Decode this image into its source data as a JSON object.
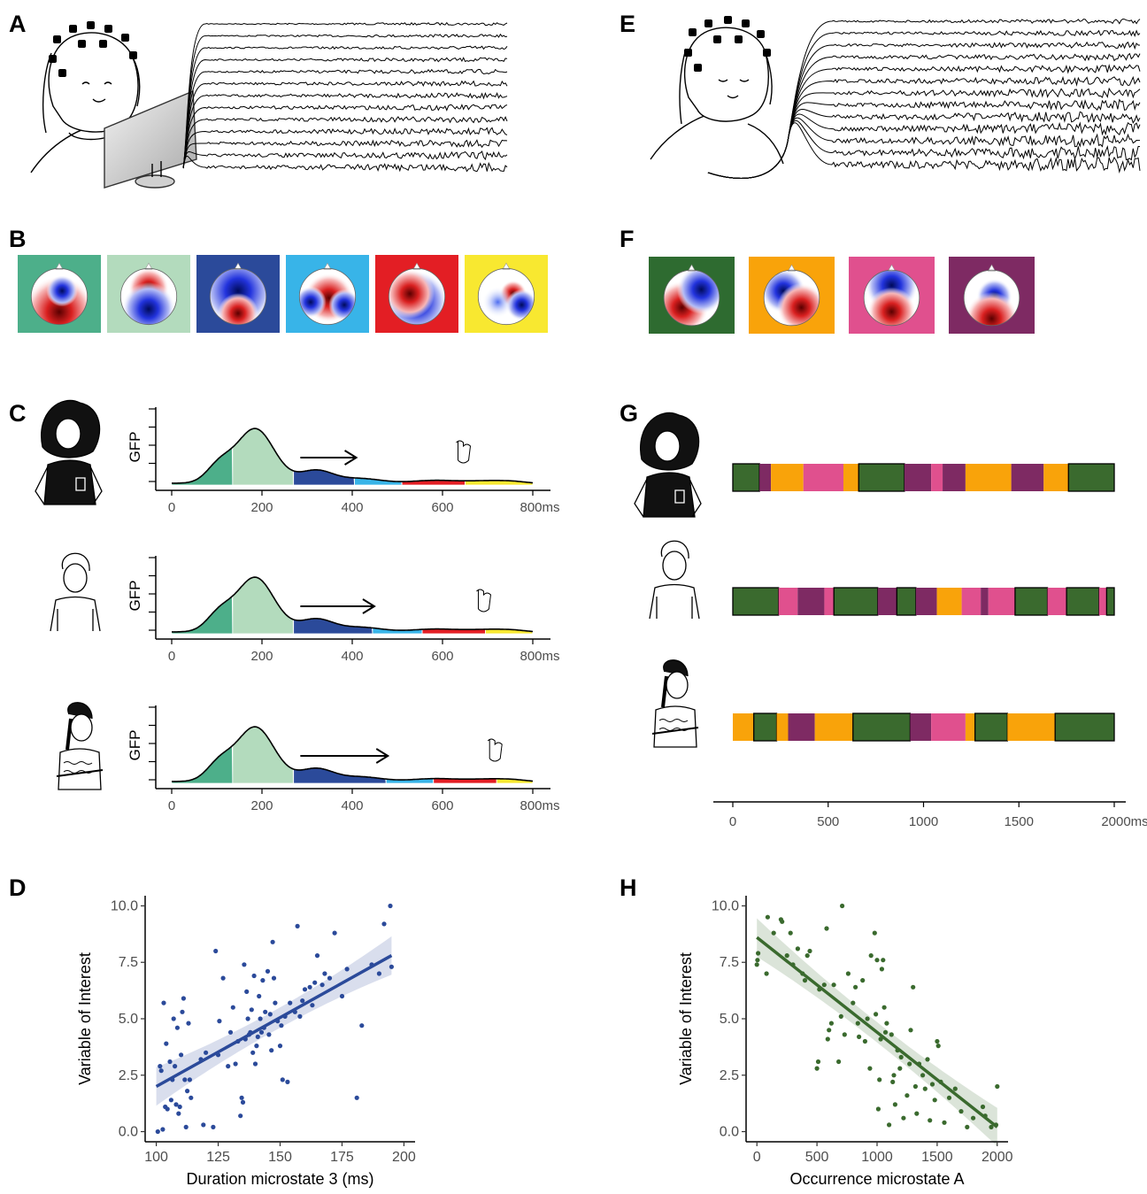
{
  "panels": {
    "A": "A",
    "B": "B",
    "C": "C",
    "D": "D",
    "E": "E",
    "F": "F",
    "G": "G",
    "H": "H"
  },
  "colors": {
    "erp_states": [
      "#4daf8a",
      "#b3dbbd",
      "#2b4a9a",
      "#38b4e8",
      "#e31e24",
      "#f8e830"
    ],
    "rest_states": [
      "#3a6a2e",
      "#f9a30a",
      "#e0508e",
      "#7e2a63"
    ],
    "rest_state_frames": [
      "#2e6b30",
      "#f9a30a",
      "#e0508e",
      "#7e2a63"
    ],
    "scatter_D": "#2b4a9a",
    "scatter_H": "#3a6a2e"
  },
  "icons": {
    "A": "eeg-cap-person-at-monitor-icon",
    "E": "eeg-cap-person-eyes-closed-icon",
    "participant_1": "curly-hair-person-icon",
    "participant_2": "short-hair-person-icon",
    "participant_3": "braided-hair-person-icon",
    "hand": "pointing-hand-icon",
    "topomap": "scalp-topography-icon"
  },
  "chart_data": [
    {
      "panel": "C",
      "type": "area",
      "ylabel": "GFP",
      "xlabel": "",
      "x_ticks": [
        "0",
        "200",
        "400",
        "600",
        "800ms"
      ],
      "xlim": [
        -25,
        805
      ],
      "participants": [
        {
          "segment_bounds_ms": [
            0,
            135,
            270,
            405,
            510,
            650,
            800
          ],
          "response_ms": 650
        },
        {
          "segment_bounds_ms": [
            0,
            135,
            270,
            445,
            555,
            695,
            800
          ],
          "response_ms": 695
        },
        {
          "segment_bounds_ms": [
            0,
            135,
            270,
            475,
            580,
            720,
            800
          ],
          "response_ms": 720
        }
      ]
    },
    {
      "panel": "G",
      "type": "bar",
      "x_ticks": [
        "0",
        "500",
        "1000",
        "1500",
        "2000ms"
      ],
      "xlim": [
        0,
        2000
      ],
      "sequences": [
        [
          {
            "state": "A",
            "start": 0,
            "end": 140
          },
          {
            "state": "D",
            "start": 140,
            "end": 200
          },
          {
            "state": "B",
            "start": 200,
            "end": 370
          },
          {
            "state": "C",
            "start": 370,
            "end": 580
          },
          {
            "state": "B",
            "start": 580,
            "end": 660
          },
          {
            "state": "A",
            "start": 660,
            "end": 900
          },
          {
            "state": "D",
            "start": 900,
            "end": 1040
          },
          {
            "state": "C",
            "start": 1040,
            "end": 1100
          },
          {
            "state": "D",
            "start": 1100,
            "end": 1220
          },
          {
            "state": "B",
            "start": 1220,
            "end": 1460
          },
          {
            "state": "D",
            "start": 1460,
            "end": 1630
          },
          {
            "state": "B",
            "start": 1630,
            "end": 1760
          },
          {
            "state": "A",
            "start": 1760,
            "end": 2000
          }
        ],
        [
          {
            "state": "A",
            "start": 0,
            "end": 240
          },
          {
            "state": "C",
            "start": 240,
            "end": 340
          },
          {
            "state": "D",
            "start": 340,
            "end": 480
          },
          {
            "state": "C",
            "start": 480,
            "end": 530
          },
          {
            "state": "A",
            "start": 530,
            "end": 760
          },
          {
            "state": "D",
            "start": 760,
            "end": 860
          },
          {
            "state": "A",
            "start": 860,
            "end": 960
          },
          {
            "state": "D",
            "start": 960,
            "end": 1070
          },
          {
            "state": "B",
            "start": 1070,
            "end": 1200
          },
          {
            "state": "C",
            "start": 1200,
            "end": 1300
          },
          {
            "state": "D",
            "start": 1300,
            "end": 1340
          },
          {
            "state": "C",
            "start": 1340,
            "end": 1480
          },
          {
            "state": "A",
            "start": 1480,
            "end": 1650
          },
          {
            "state": "C",
            "start": 1650,
            "end": 1750
          },
          {
            "state": "A",
            "start": 1750,
            "end": 1920
          },
          {
            "state": "C",
            "start": 1920,
            "end": 1960
          },
          {
            "state": "A",
            "start": 1960,
            "end": 2000
          }
        ],
        [
          {
            "state": "B",
            "start": 0,
            "end": 110
          },
          {
            "state": "A",
            "start": 110,
            "end": 230
          },
          {
            "state": "B",
            "start": 230,
            "end": 290
          },
          {
            "state": "D",
            "start": 290,
            "end": 430
          },
          {
            "state": "B",
            "start": 430,
            "end": 630
          },
          {
            "state": "A",
            "start": 630,
            "end": 930
          },
          {
            "state": "D",
            "start": 930,
            "end": 1040
          },
          {
            "state": "C",
            "start": 1040,
            "end": 1220
          },
          {
            "state": "B",
            "start": 1220,
            "end": 1270
          },
          {
            "state": "A",
            "start": 1270,
            "end": 1440
          },
          {
            "state": "B",
            "start": 1440,
            "end": 1690
          },
          {
            "state": "A",
            "start": 1690,
            "end": 2000
          }
        ]
      ]
    },
    {
      "panel": "D",
      "type": "scatter",
      "xlabel": "Duration microstate 3 (ms)",
      "ylabel": "Variable of Interest",
      "xlim": [
        100,
        200
      ],
      "ylim": [
        0,
        10
      ],
      "x_ticks": [
        "100",
        "125",
        "150",
        "175",
        "200"
      ],
      "y_ticks": [
        "0.0",
        "2.5",
        "5.0",
        "7.5",
        "10.0"
      ],
      "regression": {
        "x": [
          100,
          195
        ],
        "y": [
          2.0,
          7.8
        ]
      },
      "points": [
        [
          100.6,
          0.0
        ],
        [
          101.5,
          2.9
        ],
        [
          102.0,
          2.7
        ],
        [
          102.6,
          0.1
        ],
        [
          103.0,
          5.7
        ],
        [
          103.6,
          1.1
        ],
        [
          104.0,
          3.9
        ],
        [
          104.5,
          1.0
        ],
        [
          105.5,
          3.1
        ],
        [
          106.0,
          1.4
        ],
        [
          106.5,
          2.3
        ],
        [
          107.0,
          5.0
        ],
        [
          107.5,
          2.9
        ],
        [
          108.0,
          1.2
        ],
        [
          108.5,
          4.6
        ],
        [
          109.0,
          0.8
        ],
        [
          109.5,
          1.1
        ],
        [
          110.0,
          3.4
        ],
        [
          110.5,
          5.3
        ],
        [
          111.0,
          5.9
        ],
        [
          111.5,
          2.3
        ],
        [
          112.0,
          0.2
        ],
        [
          112.5,
          1.8
        ],
        [
          113.0,
          4.8
        ],
        [
          113.5,
          2.3
        ],
        [
          114.0,
          1.5
        ],
        [
          118.0,
          3.2
        ],
        [
          119.0,
          0.3
        ],
        [
          120.0,
          3.5
        ],
        [
          123.0,
          0.2
        ],
        [
          124.0,
          8.0
        ],
        [
          125.0,
          3.4
        ],
        [
          125.5,
          4.9
        ],
        [
          127.0,
          6.8
        ],
        [
          129.0,
          2.9
        ],
        [
          130.0,
          4.4
        ],
        [
          131.0,
          5.5
        ],
        [
          132.0,
          3.0
        ],
        [
          133.0,
          4.0
        ],
        [
          134.0,
          0.7
        ],
        [
          134.5,
          1.5
        ],
        [
          135.0,
          1.3
        ],
        [
          135.5,
          7.4
        ],
        [
          136.0,
          4.1
        ],
        [
          136.5,
          6.2
        ],
        [
          137.0,
          5.0
        ],
        [
          137.5,
          4.3
        ],
        [
          138.0,
          4.4
        ],
        [
          138.5,
          5.4
        ],
        [
          139.0,
          3.5
        ],
        [
          139.5,
          6.9
        ],
        [
          140.0,
          3.0
        ],
        [
          140.5,
          3.8
        ],
        [
          141.0,
          4.2
        ],
        [
          141.5,
          6.0
        ],
        [
          142.0,
          5.0
        ],
        [
          142.5,
          4.4
        ],
        [
          143.0,
          6.7
        ],
        [
          143.5,
          4.6
        ],
        [
          144.0,
          5.3
        ],
        [
          145.0,
          7.1
        ],
        [
          145.5,
          4.3
        ],
        [
          146.0,
          5.2
        ],
        [
          146.5,
          3.6
        ],
        [
          147.0,
          8.4
        ],
        [
          147.5,
          6.8
        ],
        [
          148.0,
          5.7
        ],
        [
          149.0,
          4.9
        ],
        [
          150.0,
          3.8
        ],
        [
          150.5,
          4.7
        ],
        [
          151.0,
          2.3
        ],
        [
          152.0,
          5.1
        ],
        [
          153.0,
          2.2
        ],
        [
          154.0,
          5.7
        ],
        [
          156.0,
          5.3
        ],
        [
          157.0,
          9.1
        ],
        [
          158.0,
          5.1
        ],
        [
          159.0,
          5.8
        ],
        [
          160.0,
          6.3
        ],
        [
          162.0,
          6.4
        ],
        [
          163.0,
          5.6
        ],
        [
          164.0,
          6.6
        ],
        [
          165.0,
          7.8
        ],
        [
          167.0,
          6.5
        ],
        [
          168.0,
          7.0
        ],
        [
          170.0,
          6.8
        ],
        [
          172.0,
          8.8
        ],
        [
          175.0,
          6.0
        ],
        [
          177.0,
          7.2
        ],
        [
          181.0,
          1.5
        ],
        [
          183.0,
          4.7
        ],
        [
          187.0,
          7.4
        ],
        [
          190.0,
          7.0
        ],
        [
          192.0,
          9.2
        ],
        [
          194.5,
          10.0
        ],
        [
          195.0,
          7.3
        ]
      ]
    },
    {
      "panel": "H",
      "type": "scatter",
      "xlabel": "Occurrence microstate A",
      "ylabel": "Variable of Interest",
      "xlim": [
        0,
        2000
      ],
      "ylim": [
        0,
        10
      ],
      "x_ticks": [
        "0",
        "500",
        "1000",
        "1500",
        "2000"
      ],
      "y_ticks": [
        "0.0",
        "2.5",
        "5.0",
        "7.5",
        "10.0"
      ],
      "regression": {
        "x": [
          0,
          2000
        ],
        "y": [
          8.6,
          0.2
        ]
      },
      "points": [
        [
          0,
          7.4
        ],
        [
          5,
          7.6
        ],
        [
          10,
          7.9
        ],
        [
          80,
          7.0
        ],
        [
          90,
          9.5
        ],
        [
          140,
          8.8
        ],
        [
          200,
          9.4
        ],
        [
          210,
          9.3
        ],
        [
          250,
          7.8
        ],
        [
          280,
          8.8
        ],
        [
          300,
          7.4
        ],
        [
          340,
          8.1
        ],
        [
          380,
          7.0
        ],
        [
          400,
          6.7
        ],
        [
          420,
          7.8
        ],
        [
          440,
          8.0
        ],
        [
          500,
          2.8
        ],
        [
          510,
          3.1
        ],
        [
          520,
          6.3
        ],
        [
          560,
          6.5
        ],
        [
          580,
          9.0
        ],
        [
          590,
          4.1
        ],
        [
          600,
          4.5
        ],
        [
          620,
          4.8
        ],
        [
          640,
          6.5
        ],
        [
          680,
          3.1
        ],
        [
          700,
          5.1
        ],
        [
          710,
          10.0
        ],
        [
          730,
          4.3
        ],
        [
          760,
          7.0
        ],
        [
          800,
          5.7
        ],
        [
          820,
          6.4
        ],
        [
          840,
          4.8
        ],
        [
          850,
          4.2
        ],
        [
          880,
          6.7
        ],
        [
          900,
          4.0
        ],
        [
          920,
          5.0
        ],
        [
          940,
          2.8
        ],
        [
          950,
          7.8
        ],
        [
          980,
          8.8
        ],
        [
          990,
          5.2
        ],
        [
          1000,
          7.6
        ],
        [
          1010,
          1.0
        ],
        [
          1020,
          2.3
        ],
        [
          1030,
          4.1
        ],
        [
          1040,
          7.2
        ],
        [
          1050,
          7.6
        ],
        [
          1060,
          5.5
        ],
        [
          1070,
          4.4
        ],
        [
          1080,
          4.8
        ],
        [
          1100,
          0.3
        ],
        [
          1120,
          4.3
        ],
        [
          1130,
          2.2
        ],
        [
          1140,
          2.5
        ],
        [
          1150,
          1.2
        ],
        [
          1170,
          3.6
        ],
        [
          1190,
          2.8
        ],
        [
          1200,
          3.3
        ],
        [
          1220,
          0.6
        ],
        [
          1250,
          1.6
        ],
        [
          1270,
          3.0
        ],
        [
          1280,
          4.5
        ],
        [
          1300,
          6.4
        ],
        [
          1320,
          2.0
        ],
        [
          1330,
          0.8
        ],
        [
          1350,
          3.0
        ],
        [
          1380,
          2.5
        ],
        [
          1400,
          1.9
        ],
        [
          1420,
          3.2
        ],
        [
          1440,
          0.5
        ],
        [
          1460,
          2.1
        ],
        [
          1480,
          1.4
        ],
        [
          1500,
          4.0
        ],
        [
          1510,
          3.8
        ],
        [
          1530,
          2.2
        ],
        [
          1560,
          0.4
        ],
        [
          1600,
          1.5
        ],
        [
          1650,
          1.9
        ],
        [
          1700,
          0.9
        ],
        [
          1750,
          0.2
        ],
        [
          1800,
          0.6
        ],
        [
          1880,
          1.1
        ],
        [
          1900,
          0.7
        ],
        [
          1950,
          0.2
        ],
        [
          1990,
          0.3
        ],
        [
          2000,
          2.0
        ]
      ]
    }
  ]
}
